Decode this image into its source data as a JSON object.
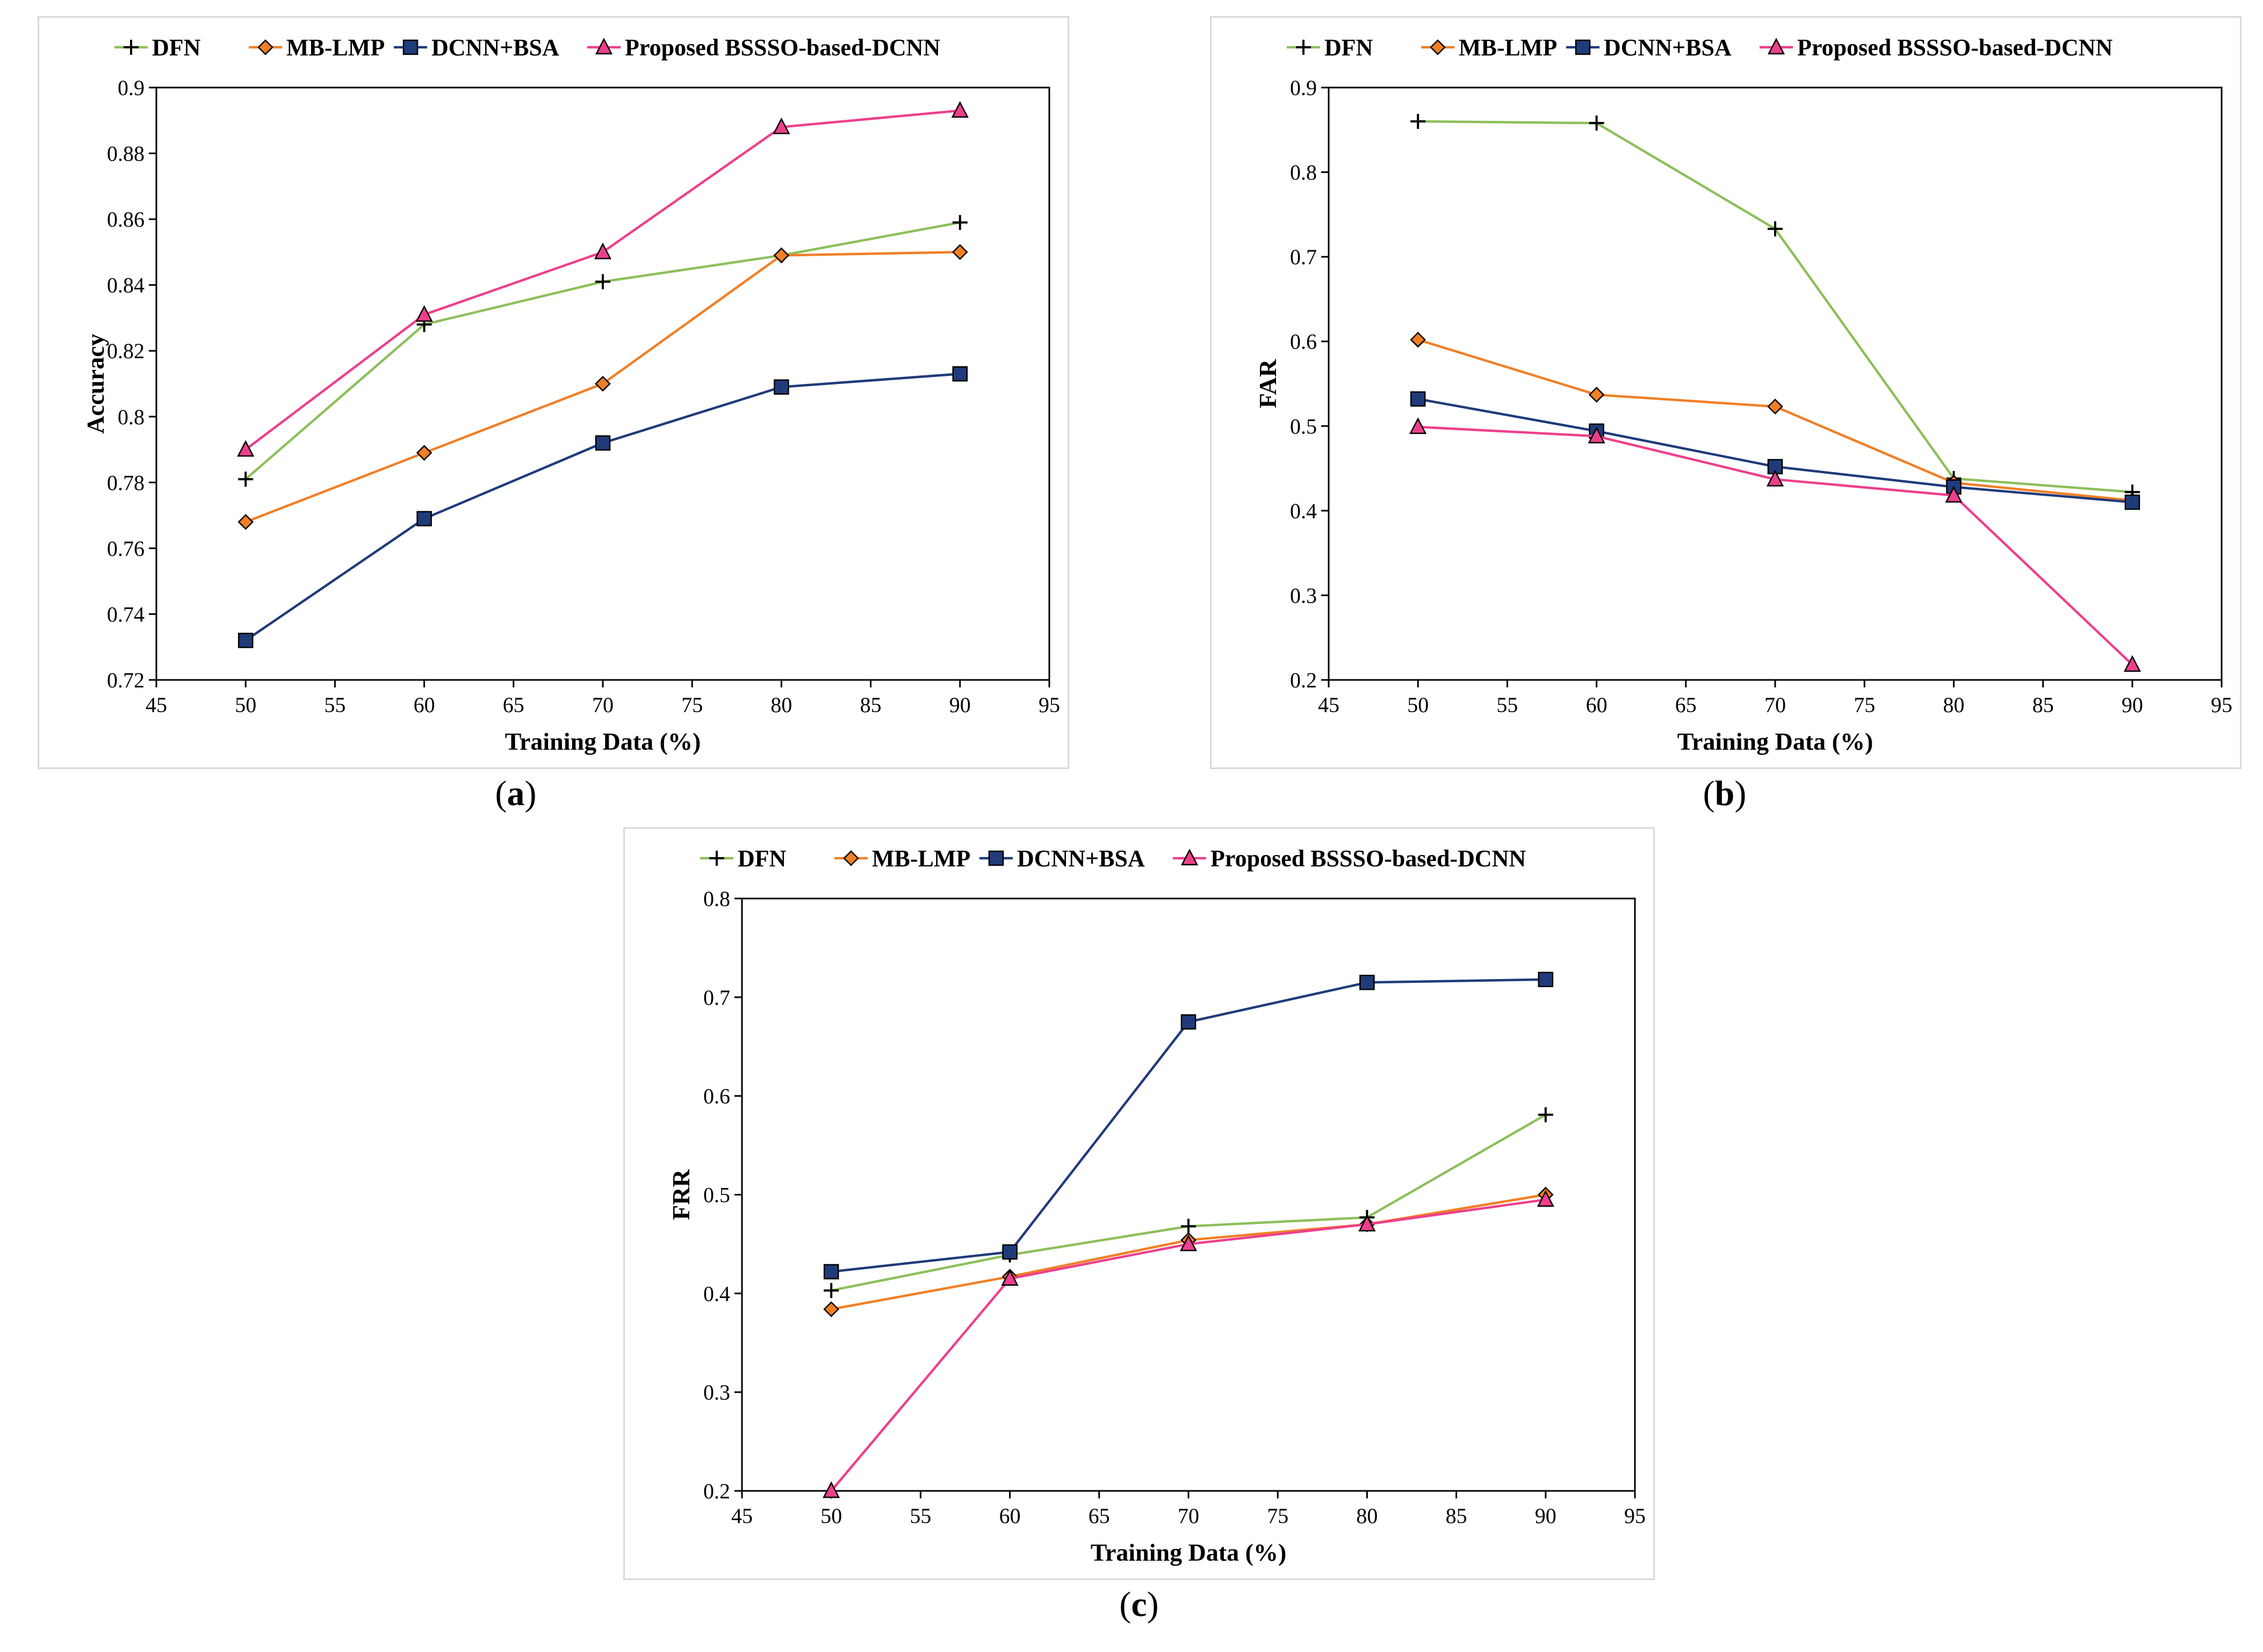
{
  "colors": {
    "DFN": "#8cbf5a",
    "MB-LMP": "#f07f26",
    "DCNN+BSA": "#1f3b7a",
    "Proposed": "#ee3f8d",
    "marker_dfn": "#000000",
    "marker_mblmp": "#f07f26",
    "marker_dcnn": "#1f3b7a",
    "marker_prop": "#ee3f8d"
  },
  "legend_labels": [
    "DFN",
    "MB-LMP",
    "DCNN+BSA",
    "Proposed BSSSO-based-DCNN"
  ],
  "captions": {
    "a": "a",
    "b": "b",
    "c": "c"
  },
  "chart_data": [
    {
      "id": "a",
      "type": "line",
      "title": "",
      "xlabel": "Training Data (%)",
      "ylabel": "Accuracy",
      "xlim": [
        45,
        95
      ],
      "ylim": [
        0.72,
        0.9
      ],
      "xticks": [
        45,
        50,
        55,
        60,
        65,
        70,
        75,
        80,
        85,
        90,
        95
      ],
      "yticks": [
        0.72,
        0.74,
        0.76,
        0.78,
        0.8,
        0.82,
        0.84,
        0.86,
        0.88,
        0.9
      ],
      "ytick_labels": [
        "0.72",
        "0.74",
        "0.76",
        "0.78",
        "0.8",
        "0.82",
        "0.84",
        "0.86",
        "0.88",
        "0.9"
      ],
      "x": [
        50,
        60,
        70,
        80,
        90
      ],
      "series": [
        {
          "name": "DFN",
          "values": [
            0.781,
            0.828,
            0.841,
            0.849,
            0.859
          ]
        },
        {
          "name": "MB-LMP",
          "values": [
            0.768,
            0.789,
            0.81,
            0.849,
            0.85
          ]
        },
        {
          "name": "DCNN+BSA",
          "values": [
            0.732,
            0.769,
            0.792,
            0.809,
            0.813
          ]
        },
        {
          "name": "Proposed BSSSO-based-DCNN",
          "values": [
            0.79,
            0.831,
            0.85,
            0.888,
            0.893
          ]
        }
      ]
    },
    {
      "id": "b",
      "type": "line",
      "title": "",
      "xlabel": "Training Data (%)",
      "ylabel": "FAR",
      "xlim": [
        45,
        95
      ],
      "ylim": [
        0.2,
        0.9
      ],
      "xticks": [
        45,
        50,
        55,
        60,
        65,
        70,
        75,
        80,
        85,
        90,
        95
      ],
      "yticks": [
        0.2,
        0.3,
        0.4,
        0.5,
        0.6,
        0.7,
        0.8,
        0.9
      ],
      "ytick_labels": [
        "0.2",
        "0.3",
        "0.4",
        "0.5",
        "0.6",
        "0.7",
        "0.8",
        "0.9"
      ],
      "x": [
        50,
        60,
        70,
        80,
        90
      ],
      "series": [
        {
          "name": "DFN",
          "values": [
            0.86,
            0.858,
            0.733,
            0.438,
            0.422
          ]
        },
        {
          "name": "MB-LMP",
          "values": [
            0.602,
            0.537,
            0.523,
            0.433,
            0.412
          ]
        },
        {
          "name": "DCNN+BSA",
          "values": [
            0.532,
            0.494,
            0.452,
            0.428,
            0.41
          ]
        },
        {
          "name": "Proposed BSSSO-based-DCNN",
          "values": [
            0.499,
            0.488,
            0.437,
            0.418,
            0.218
          ]
        }
      ]
    },
    {
      "id": "c",
      "type": "line",
      "title": "",
      "xlabel": "Training Data (%)",
      "ylabel": "FRR",
      "xlim": [
        45,
        95
      ],
      "ylim": [
        0.2,
        0.8
      ],
      "xticks": [
        45,
        50,
        55,
        60,
        65,
        70,
        75,
        80,
        85,
        90,
        95
      ],
      "yticks": [
        0.2,
        0.3,
        0.4,
        0.5,
        0.6,
        0.7,
        0.8
      ],
      "ytick_labels": [
        "0.2",
        "0.3",
        "0.4",
        "0.5",
        "0.6",
        "0.7",
        "0.8"
      ],
      "x": [
        50,
        60,
        70,
        80,
        90
      ],
      "series": [
        {
          "name": "DFN",
          "values": [
            0.403,
            0.439,
            0.468,
            0.477,
            0.581
          ]
        },
        {
          "name": "MB-LMP",
          "values": [
            0.384,
            0.417,
            0.454,
            0.47,
            0.5
          ]
        },
        {
          "name": "DCNN+BSA",
          "values": [
            0.422,
            0.442,
            0.675,
            0.715,
            0.718
          ]
        },
        {
          "name": "Proposed BSSSO-based-DCNN",
          "values": [
            0.2,
            0.415,
            0.45,
            0.47,
            0.495
          ]
        }
      ]
    }
  ]
}
